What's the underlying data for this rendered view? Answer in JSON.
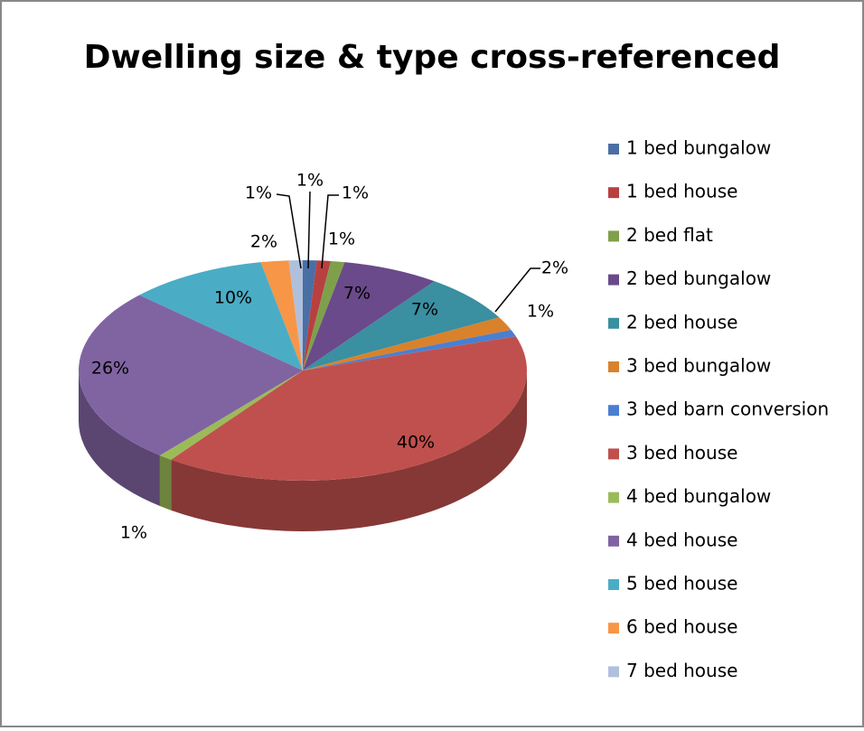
{
  "chart_data": {
    "type": "pie3d",
    "title": "Dwelling size & type cross-referenced",
    "categories": [
      "1 bed bungalow",
      "1 bed house",
      "2 bed flat",
      "2 bed bungalow",
      "2 bed house",
      "3 bed bungalow",
      "3 bed barn conversion",
      "3 bed house",
      "4 bed bungalow",
      "4 bed house",
      "5 bed house",
      "6 bed house",
      "7 bed house"
    ],
    "values": [
      1,
      1,
      1,
      7,
      7,
      2,
      1,
      40,
      1,
      26,
      10,
      2,
      1
    ],
    "value_labels": [
      "1%",
      "1%",
      "1%",
      "7%",
      "7%",
      "2%",
      "1%",
      "40%",
      "1%",
      "26%",
      "10%",
      "2%",
      "1%"
    ],
    "colors": [
      "#4a6fa5",
      "#b84040",
      "#7ea04a",
      "#6a4a8a",
      "#3a8fa0",
      "#d9822b",
      "#4a7fd0",
      "#c0504d",
      "#9bbb59",
      "#8064a2",
      "#4bacc6",
      "#f79646",
      "#b0c0dc"
    ],
    "legend": "right"
  }
}
